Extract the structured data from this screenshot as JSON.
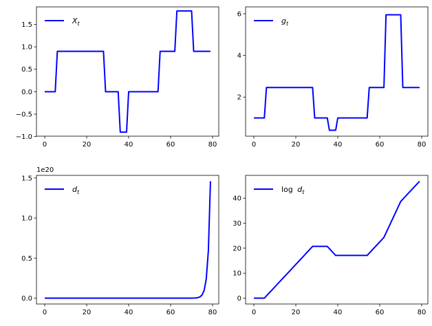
{
  "chart_data": [
    {
      "type": "line",
      "legend": {
        "prefix": "",
        "base": "X",
        "sub": "t"
      },
      "legend_placement": "upper-left",
      "color": "#0000ff",
      "x": {
        "start": 0,
        "end": 79,
        "step": 1
      },
      "xticks": [
        "0",
        "20",
        "40",
        "60",
        "80"
      ],
      "yticks": [
        "−1.0",
        "−0.5",
        "0.0",
        "0.5",
        "1.0",
        "1.5"
      ],
      "ytick_values": [
        -1.0,
        -0.5,
        0.0,
        0.5,
        1.0,
        1.5
      ],
      "ylim": [
        -0.99,
        1.89
      ],
      "offset_text": "",
      "values": [
        0,
        0,
        0,
        0,
        0,
        0,
        0.9,
        0.9,
        0.9,
        0.9,
        0.9,
        0.9,
        0.9,
        0.9,
        0.9,
        0.9,
        0.9,
        0.9,
        0.9,
        0.9,
        0.9,
        0.9,
        0.9,
        0.9,
        0.9,
        0.9,
        0.9,
        0.9,
        0.9,
        0,
        0,
        0,
        0,
        0,
        0,
        0,
        -0.9,
        -0.9,
        -0.9,
        -0.9,
        0,
        0,
        0,
        0,
        0,
        0,
        0,
        0,
        0,
        0,
        0,
        0,
        0,
        0,
        0,
        0.9,
        0.9,
        0.9,
        0.9,
        0.9,
        0.9,
        0.9,
        0.9,
        1.8,
        1.8,
        1.8,
        1.8,
        1.8,
        1.8,
        1.8,
        1.8,
        0.9,
        0.9,
        0.9,
        0.9,
        0.9,
        0.9,
        0.9,
        0.9,
        0.9
      ]
    },
    {
      "type": "line",
      "legend": {
        "prefix": "",
        "base": "g",
        "sub": "t"
      },
      "legend_placement": "upper-left",
      "color": "#0000ff",
      "x": {
        "start": 0,
        "end": 79,
        "step": 1
      },
      "xticks": [
        "0",
        "20",
        "40",
        "60",
        "80"
      ],
      "yticks": [
        "2",
        "4",
        "6"
      ],
      "ytick_values": [
        2,
        4,
        6
      ],
      "ylim": [
        0.125,
        6.33
      ],
      "offset_text": "",
      "values": [
        1,
        1,
        1,
        1,
        1,
        1,
        2.46,
        2.46,
        2.46,
        2.46,
        2.46,
        2.46,
        2.46,
        2.46,
        2.46,
        2.46,
        2.46,
        2.46,
        2.46,
        2.46,
        2.46,
        2.46,
        2.46,
        2.46,
        2.46,
        2.46,
        2.46,
        2.46,
        2.46,
        1,
        1,
        1,
        1,
        1,
        1,
        1,
        0.41,
        0.41,
        0.41,
        0.41,
        1,
        1,
        1,
        1,
        1,
        1,
        1,
        1,
        1,
        1,
        1,
        1,
        1,
        1,
        1,
        2.46,
        2.46,
        2.46,
        2.46,
        2.46,
        2.46,
        2.46,
        2.46,
        5.95,
        5.95,
        5.95,
        5.95,
        5.95,
        5.95,
        5.95,
        5.95,
        2.46,
        2.46,
        2.46,
        2.46,
        2.46,
        2.46,
        2.46,
        2.46,
        2.46
      ]
    },
    {
      "type": "line",
      "legend": {
        "prefix": "",
        "base": "d",
        "sub": "t"
      },
      "legend_placement": "upper-left",
      "color": "#0000ff",
      "x": {
        "start": 0,
        "end": 79,
        "step": 1
      },
      "xticks": [
        "0",
        "20",
        "40",
        "60",
        "80"
      ],
      "yticks": [
        "0.0",
        "0.5",
        "1.0",
        "1.5"
      ],
      "ytick_values": [
        0,
        0.5,
        1.0,
        1.5
      ],
      "ylim": [
        -0.073,
        1.533
      ],
      "offset_text": "1e20",
      "values": [
        0,
        0,
        0,
        0,
        0,
        0,
        0,
        0,
        0,
        0,
        0,
        0,
        0,
        0,
        0,
        0,
        0,
        0,
        0,
        0,
        0,
        0,
        0,
        0,
        0,
        0,
        0,
        0,
        0,
        0,
        0,
        0,
        0,
        0,
        0,
        0,
        0,
        0,
        0,
        0,
        0,
        0,
        0,
        0,
        0,
        0,
        0,
        0,
        0,
        0,
        0,
        0,
        0,
        0,
        0,
        0,
        0,
        0,
        0,
        0,
        0,
        0,
        0,
        0,
        0,
        0,
        0,
        0,
        0,
        0.0001,
        0.00045,
        0.0011,
        0.0027,
        0.0066,
        0.016,
        0.04,
        0.098,
        0.241,
        0.593,
        1.46
      ]
    },
    {
      "type": "line",
      "legend": {
        "prefix": "log ",
        "base": "d",
        "sub": "t"
      },
      "legend_placement": "upper-left",
      "color": "#0000ff",
      "x": {
        "start": 0,
        "end": 79,
        "step": 1
      },
      "xticks": [
        "0",
        "20",
        "40",
        "60",
        "80"
      ],
      "yticks": [
        "0",
        "10",
        "20",
        "30",
        "40"
      ],
      "ytick_values": [
        0,
        10,
        20,
        30,
        40
      ],
      "ylim": [
        -2.34,
        49.14
      ],
      "offset_text": "",
      "values": [
        0,
        0,
        0,
        0,
        0,
        0,
        0.9,
        1.8,
        2.7,
        3.6,
        4.5,
        5.4,
        6.3,
        7.2,
        8.1,
        9.0,
        9.9,
        10.8,
        11.7,
        12.6,
        13.5,
        14.4,
        15.3,
        16.2,
        17.1,
        18.0,
        18.9,
        19.8,
        20.7,
        20.7,
        20.7,
        20.7,
        20.7,
        20.7,
        20.7,
        20.7,
        19.8,
        18.9,
        18.0,
        17.1,
        17.1,
        17.1,
        17.1,
        17.1,
        17.1,
        17.1,
        17.1,
        17.1,
        17.1,
        17.1,
        17.1,
        17.1,
        17.1,
        17.1,
        17.1,
        18.0,
        18.9,
        19.8,
        20.7,
        21.6,
        22.5,
        23.4,
        24.3,
        26.1,
        27.9,
        29.7,
        31.5,
        33.3,
        35.1,
        36.9,
        38.7,
        39.6,
        40.5,
        41.4,
        42.3,
        43.2,
        44.1,
        45.0,
        45.9,
        46.8
      ]
    }
  ]
}
